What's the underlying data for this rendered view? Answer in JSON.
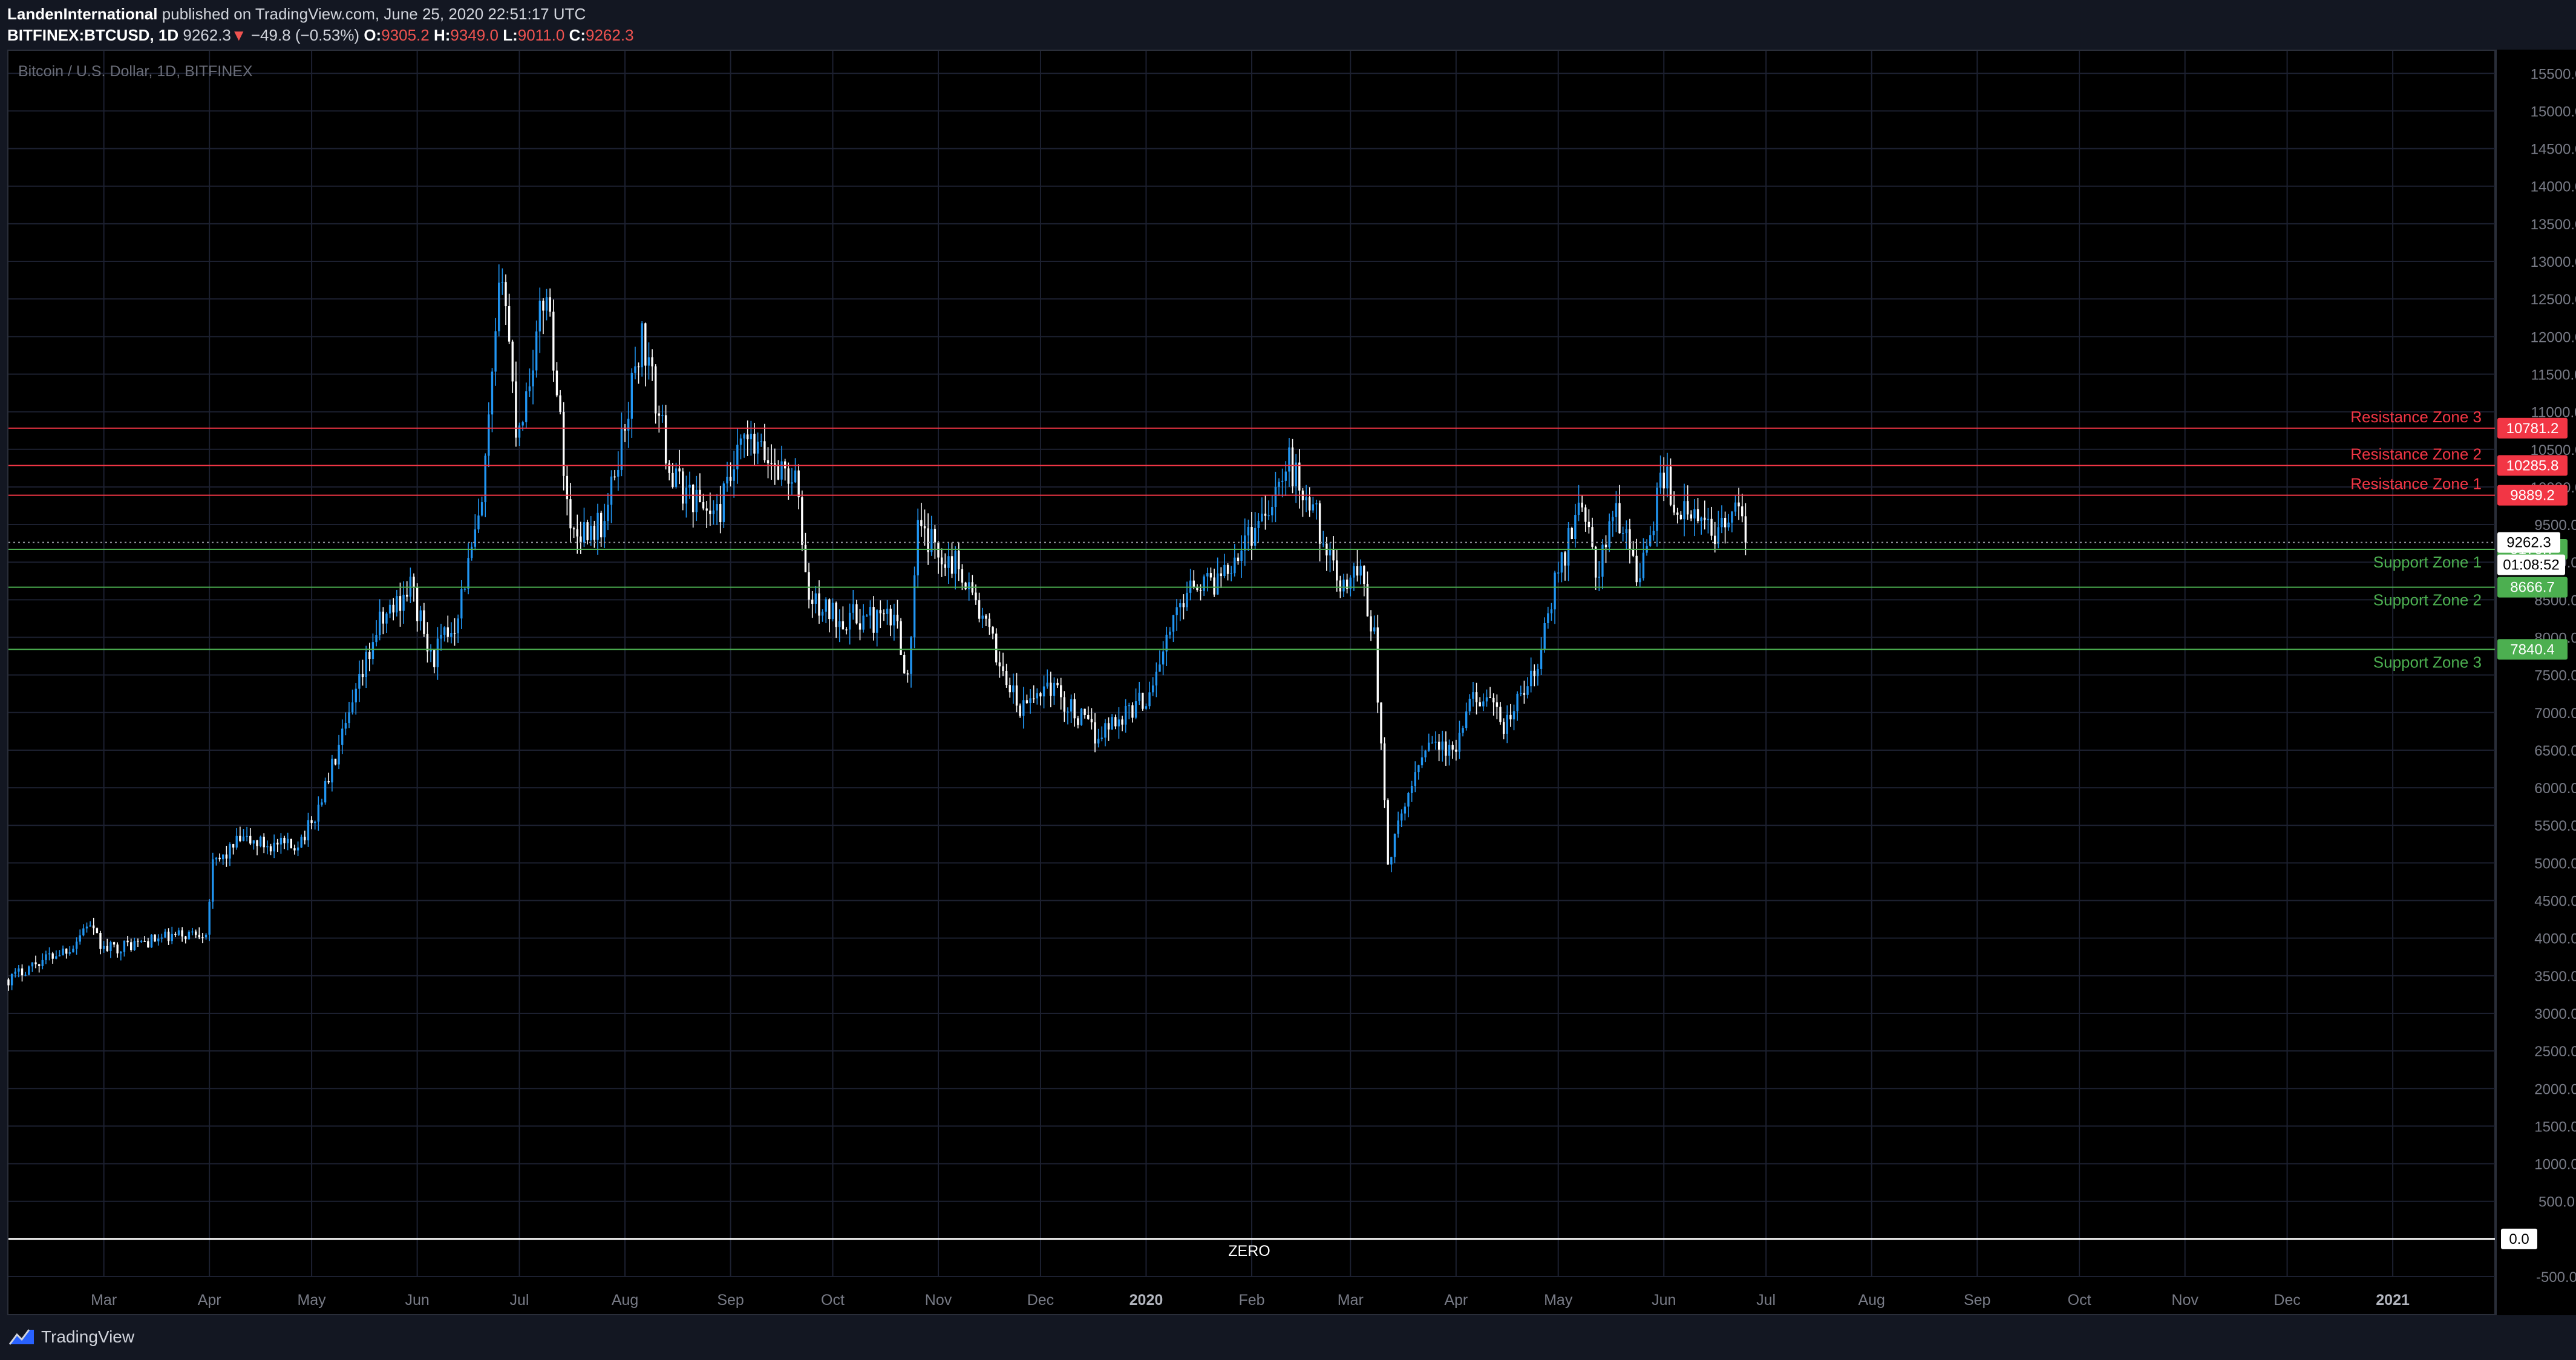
{
  "header": {
    "author": "LandenInternational",
    "published_text": "published on TradingView.com, June 25, 2020 22:51:17 UTC",
    "symbol": "BITFINEX:BTCUSD, 1D",
    "last_price": "9262.3",
    "change_arrow": "▼",
    "change": "−49.8 (−0.53%)",
    "o_label": "O:",
    "o_value": "9305.2",
    "h_label": "H:",
    "h_value": "9349.0",
    "l_label": "L:",
    "l_value": "9011.0",
    "c_label": "C:",
    "c_value": "9262.3"
  },
  "footer": {
    "brand": "TradingView",
    "logo_icon": "tradingview-logo-icon"
  },
  "colors": {
    "background": "#000000",
    "panel": "#131722",
    "grid": "#1c2030",
    "candle_up": "#2196f3",
    "candle_down": "#ffffff",
    "resistance": "#f23645",
    "support": "#4caf50",
    "zero_line": "#ffffff"
  },
  "chart_data": {
    "type": "candlestick",
    "title": "Bitcoin / U.S. Dollar, 1D, BITFINEX",
    "ylim": [
      -500,
      15800
    ],
    "y_ticks": [
      -500,
      0,
      500,
      1000,
      1500,
      2000,
      2500,
      3000,
      3500,
      4000,
      4500,
      5000,
      5500,
      6000,
      6500,
      7000,
      7500,
      8000,
      8500,
      9000,
      9500,
      10000,
      10500,
      11000,
      11500,
      12000,
      12500,
      13000,
      13500,
      14000,
      14500,
      15000,
      15500
    ],
    "x_ticks": [
      "Mar",
      "Apr",
      "May",
      "Jun",
      "Jul",
      "Aug",
      "Sep",
      "Oct",
      "Nov",
      "Dec",
      "2020",
      "Feb",
      "Mar",
      "Apr",
      "May",
      "Jun",
      "Jul",
      "Aug",
      "Sep",
      "Oct",
      "Nov",
      "Dec",
      "2021"
    ],
    "x_tick_months_index": [
      1,
      2,
      3,
      4,
      5,
      6,
      7,
      8,
      9,
      10,
      11,
      12,
      13,
      14,
      15,
      16,
      17,
      18,
      19,
      20,
      21,
      22,
      23
    ],
    "x_start": "2019-02-01",
    "x_end": "2021-01-31",
    "grid": true,
    "price_anchors": [
      [
        "2019-02-01",
        3450
      ],
      [
        "2019-02-08",
        3650
      ],
      [
        "2019-02-20",
        3900
      ],
      [
        "2019-02-24",
        4200
      ],
      [
        "2019-03-01",
        3850
      ],
      [
        "2019-03-31",
        4100
      ],
      [
        "2019-04-02",
        4950
      ],
      [
        "2019-04-10",
        5300
      ],
      [
        "2019-04-25",
        5200
      ],
      [
        "2019-05-01",
        5500
      ],
      [
        "2019-05-12",
        6900
      ],
      [
        "2019-05-20",
        8100
      ],
      [
        "2019-05-30",
        8700
      ],
      [
        "2019-06-05",
        7700
      ],
      [
        "2019-06-12",
        8200
      ],
      [
        "2019-06-20",
        9700
      ],
      [
        "2019-06-26",
        13000
      ],
      [
        "2019-06-30",
        10800
      ],
      [
        "2019-07-02",
        11000
      ],
      [
        "2019-07-09",
        12700
      ],
      [
        "2019-07-16",
        9400
      ],
      [
        "2019-07-26",
        9500
      ],
      [
        "2019-08-06",
        12000
      ],
      [
        "2019-08-15",
        10100
      ],
      [
        "2019-08-28",
        9600
      ],
      [
        "2019-09-05",
        10600
      ],
      [
        "2019-09-20",
        10100
      ],
      [
        "2019-09-24",
        8500
      ],
      [
        "2019-10-01",
        8300
      ],
      [
        "2019-10-20",
        8200
      ],
      [
        "2019-10-23",
        7400
      ],
      [
        "2019-10-26",
        9400
      ],
      [
        "2019-11-08",
        8900
      ],
      [
        "2019-11-25",
        7000
      ],
      [
        "2019-12-03",
        7400
      ],
      [
        "2019-12-17",
        6700
      ],
      [
        "2020-01-01",
        7200
      ],
      [
        "2020-01-14",
        8800
      ],
      [
        "2020-01-20",
        8700
      ],
      [
        "2020-02-01",
        9400
      ],
      [
        "2020-02-12",
        10300
      ],
      [
        "2020-02-20",
        9600
      ],
      [
        "2020-02-26",
        8700
      ],
      [
        "2020-03-04",
        8900
      ],
      [
        "2020-03-08",
        8000
      ],
      [
        "2020-03-12",
        5000
      ],
      [
        "2020-03-14",
        5300
      ],
      [
        "2020-03-20",
        6200
      ],
      [
        "2020-03-24",
        6700
      ],
      [
        "2020-03-31",
        6400
      ],
      [
        "2020-04-07",
        7300
      ],
      [
        "2020-04-15",
        6800
      ],
      [
        "2020-04-25",
        7600
      ],
      [
        "2020-04-30",
        8700
      ],
      [
        "2020-05-08",
        9900
      ],
      [
        "2020-05-12",
        8800
      ],
      [
        "2020-05-18",
        9700
      ],
      [
        "2020-05-25",
        8800
      ],
      [
        "2020-06-01",
        10200
      ],
      [
        "2020-06-05",
        9700
      ],
      [
        "2020-06-15",
        9400
      ],
      [
        "2020-06-22",
        9700
      ],
      [
        "2020-06-25",
        9262
      ]
    ],
    "levels": [
      {
        "name": "Resistance Zone 3",
        "value": 10781.2,
        "kind": "resistance"
      },
      {
        "name": "Resistance Zone 2",
        "value": 10285.8,
        "kind": "resistance"
      },
      {
        "name": "Resistance Zone 1",
        "value": 9889.2,
        "kind": "resistance"
      },
      {
        "name": "Support Zone 1",
        "value": 9170.7,
        "kind": "support"
      },
      {
        "name": "Support Zone 2",
        "value": 8666.7,
        "kind": "support"
      },
      {
        "name": "Support Zone 3",
        "value": 7840.4,
        "kind": "support"
      }
    ],
    "zero_line": {
      "label": "ZERO",
      "value": 0.0,
      "tag": "0.0"
    },
    "last_price_tag": "9262.3",
    "countdown_tag": "01:08:52",
    "price_tags": [
      "10781.2",
      "10285.8",
      "9889.2",
      "9170.7",
      "8666.7",
      "7840.4"
    ]
  }
}
